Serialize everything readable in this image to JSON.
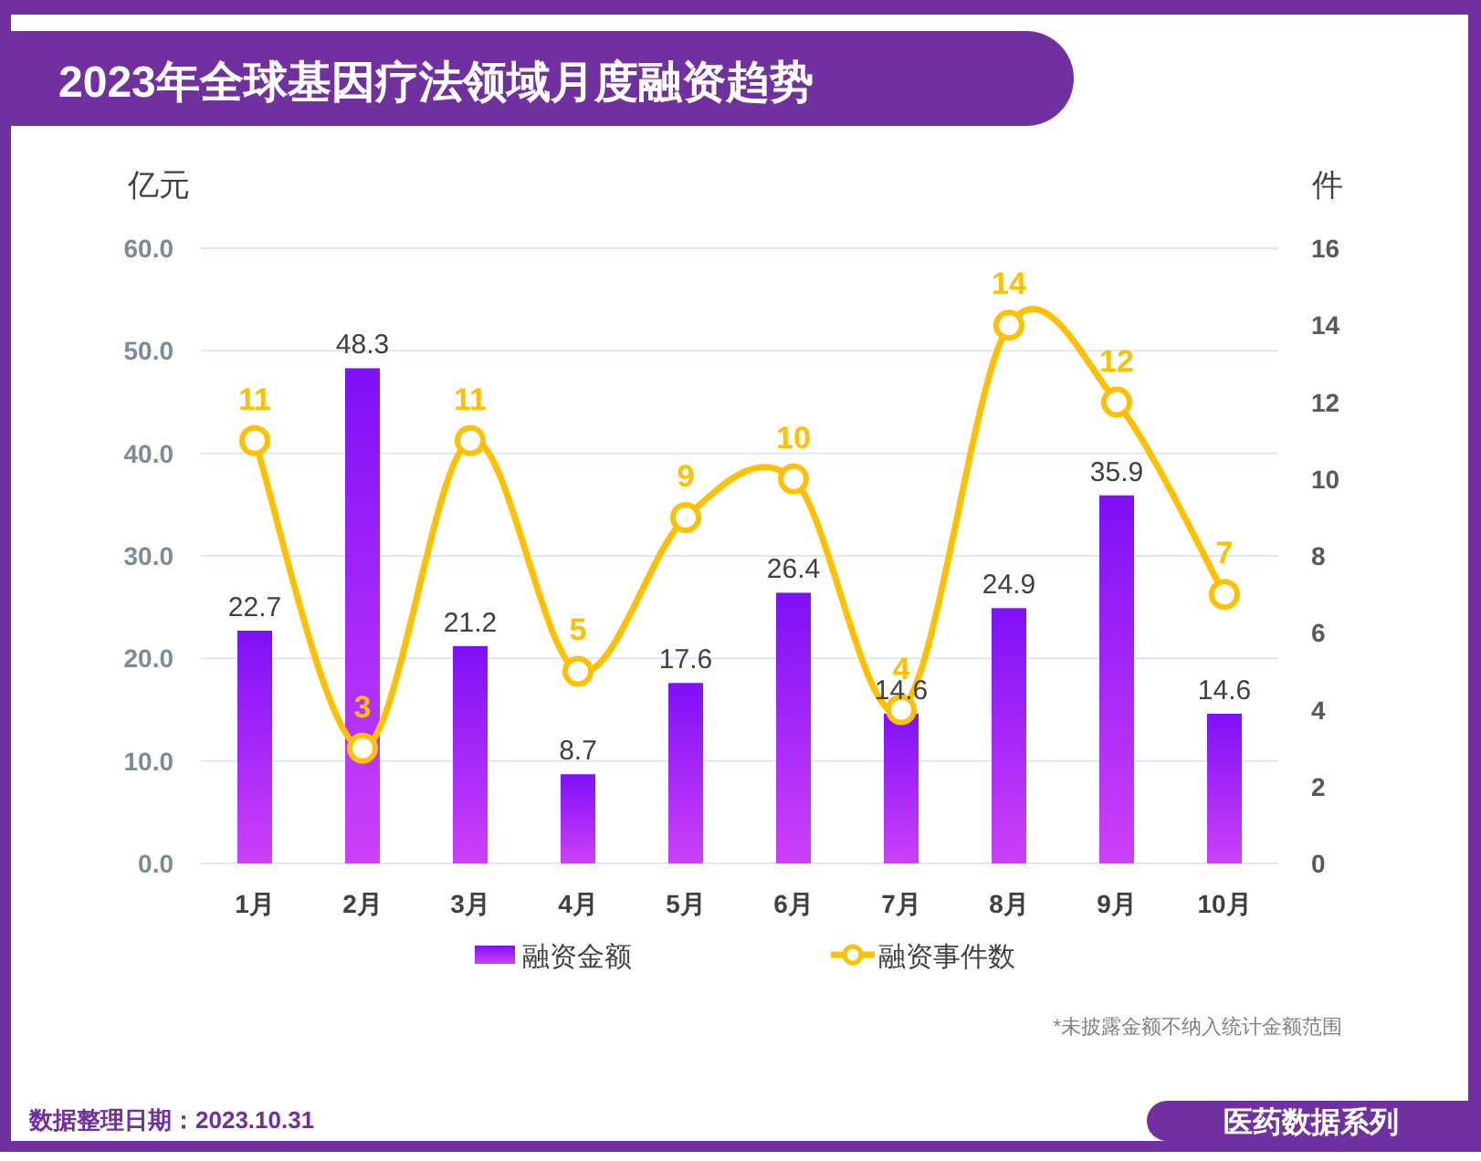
{
  "chart_data": {
    "type": "bar",
    "title": "2023年全球基因疗法领域月度融资趋势",
    "ylabel": "亿元",
    "y2label": "件",
    "categories": [
      "1月",
      "2月",
      "3月",
      "4月",
      "5月",
      "6月",
      "7月",
      "8月",
      "9月",
      "10月"
    ],
    "series": [
      {
        "name": "融资金额",
        "color": "#8f18f2",
        "values": [
          22.7,
          48.3,
          21.2,
          8.7,
          17.6,
          26.4,
          14.6,
          24.9,
          35.9,
          14.6
        ]
      },
      {
        "name": "融资事件数",
        "type": "line",
        "axis": "y2",
        "color": "#ffc000",
        "values": [
          11,
          3,
          11,
          5,
          9,
          10,
          4,
          14,
          12,
          7
        ]
      }
    ],
    "ylim": [
      0,
      60
    ],
    "yticks": [
      {
        "value": 0,
        "label": "0.0"
      },
      {
        "value": 10,
        "label": "10.0"
      },
      {
        "value": 20,
        "label": "20.0"
      },
      {
        "value": 30,
        "label": "30.0"
      },
      {
        "value": 40,
        "label": "40.0"
      },
      {
        "value": 50,
        "label": "50.0"
      },
      {
        "value": 60,
        "label": "60.0"
      }
    ],
    "y2lim": [
      0,
      16
    ],
    "y2ticks": [
      0,
      2,
      4,
      6,
      8,
      10,
      12,
      14,
      16
    ],
    "grid": "y",
    "legend": "bottom",
    "marker": "circle",
    "data_labels": true,
    "annotations": [
      "*未披露金额不纳入统计金额范围",
      "数据整理日期：2023.10.31",
      "医药数据系列"
    ]
  }
}
